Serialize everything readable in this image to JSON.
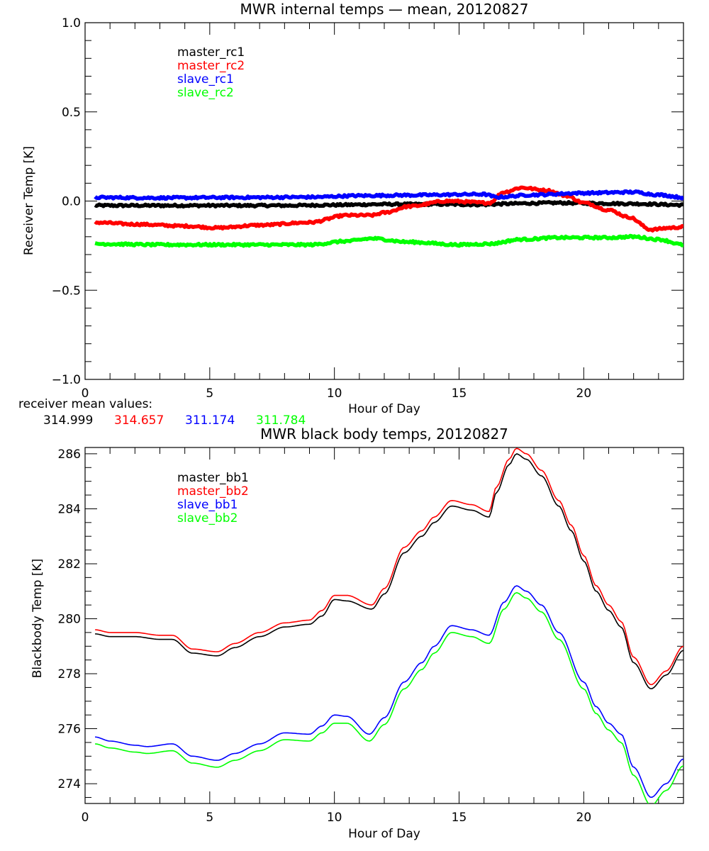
{
  "chart_data": [
    {
      "type": "line",
      "title": "MWR internal temps — mean, 20120827",
      "xlabel": "Hour of Day",
      "ylabel": "Receiver Temp [K]",
      "xlim": [
        0,
        24
      ],
      "ylim": [
        -1.0,
        1.0
      ],
      "xticks": [
        0,
        5,
        10,
        15,
        20
      ],
      "xtick_labels": [
        "0",
        "5",
        "10",
        "15",
        "20"
      ],
      "x_minor_step": 1,
      "yticks": [
        -1.0,
        -0.5,
        0.0,
        0.5,
        1.0
      ],
      "ytick_labels": [
        "−1.0",
        "−0.5",
        "0.0",
        "0.5",
        "1.0"
      ],
      "y_minor_step": 0.1,
      "grid": false,
      "legend_position": "top-left (inside)",
      "noisy": true,
      "series": [
        {
          "name": "master_rc1",
          "color": "#000000",
          "x": [
            0.4,
            2,
            4,
            6,
            8,
            10,
            12,
            14,
            16,
            17,
            18,
            19,
            20,
            22,
            24
          ],
          "y": [
            -0.025,
            -0.025,
            -0.025,
            -0.025,
            -0.025,
            -0.022,
            -0.018,
            -0.018,
            -0.02,
            -0.015,
            -0.012,
            -0.01,
            -0.012,
            -0.015,
            -0.022
          ]
        },
        {
          "name": "master_rc2",
          "color": "#ff0000",
          "x": [
            0.4,
            2,
            4,
            5.3,
            7,
            9,
            10.5,
            11.5,
            12,
            13,
            14.5,
            16.2,
            16.8,
            17.5,
            18.5,
            19.3,
            20,
            21,
            21.8,
            22.7,
            23.5,
            24
          ],
          "y": [
            -0.12,
            -0.13,
            -0.14,
            -0.15,
            -0.135,
            -0.12,
            -0.08,
            -0.08,
            -0.065,
            -0.03,
            0.0,
            -0.01,
            0.05,
            0.075,
            0.06,
            0.03,
            -0.01,
            -0.05,
            -0.09,
            -0.16,
            -0.15,
            -0.145
          ]
        },
        {
          "name": "slave_rc1",
          "color": "#0000ff",
          "x": [
            0.4,
            3,
            6,
            9,
            11,
            13,
            16,
            16.5,
            18,
            20,
            22,
            23,
            24
          ],
          "y": [
            0.02,
            0.018,
            0.02,
            0.022,
            0.03,
            0.033,
            0.038,
            0.022,
            0.035,
            0.045,
            0.05,
            0.035,
            0.02
          ]
        },
        {
          "name": "slave_rc2",
          "color": "#00ff00",
          "x": [
            0.4,
            3,
            6,
            9,
            10.5,
            11.5,
            13,
            15,
            16.2,
            17.5,
            19,
            21,
            22,
            23,
            24
          ],
          "y": [
            -0.24,
            -0.245,
            -0.245,
            -0.245,
            -0.225,
            -0.21,
            -0.23,
            -0.245,
            -0.24,
            -0.215,
            -0.205,
            -0.205,
            -0.2,
            -0.215,
            -0.245
          ]
        }
      ],
      "annotation": {
        "label": "receiver mean values:",
        "values": [
          {
            "text": "314.999",
            "color": "#000000"
          },
          {
            "text": "314.657",
            "color": "#ff0000"
          },
          {
            "text": "311.174",
            "color": "#0000ff"
          },
          {
            "text": "311.784",
            "color": "#00ff00"
          }
        ]
      }
    },
    {
      "type": "line",
      "title": "MWR black body temps, 20120827",
      "xlabel": "Hour of Day",
      "ylabel": "Blackbody Temp [K]",
      "xlim": [
        0,
        24
      ],
      "ylim": [
        273.28,
        286.23
      ],
      "xticks": [
        0,
        5,
        10,
        15,
        20
      ],
      "xtick_labels": [
        "0",
        "5",
        "10",
        "15",
        "20"
      ],
      "x_minor_step": 1,
      "yticks": [
        274,
        276,
        278,
        280,
        282,
        284,
        286
      ],
      "ytick_labels": [
        "274",
        "276",
        "278",
        "280",
        "282",
        "284",
        "286"
      ],
      "y_minor_step": 0.5,
      "grid": false,
      "legend_position": "top-left (inside)",
      "series": [
        {
          "name": "master_bb1",
          "color": "#000000",
          "x": [
            0.4,
            1,
            2,
            3,
            3.5,
            4.3,
            5.3,
            6,
            7,
            8,
            9,
            9.5,
            10,
            10.5,
            11.5,
            12,
            12.8,
            13.5,
            14,
            14.7,
            15.5,
            16.2,
            16.5,
            17,
            17.3,
            17.7,
            18.3,
            19,
            19.5,
            20,
            20.5,
            21,
            21.5,
            22,
            22.7,
            23.3,
            24
          ],
          "y": [
            279.45,
            279.35,
            279.35,
            279.25,
            279.25,
            278.75,
            278.65,
            278.95,
            279.35,
            279.7,
            279.8,
            280.1,
            280.7,
            280.65,
            280.35,
            280.9,
            282.4,
            283.0,
            283.5,
            284.1,
            283.95,
            283.7,
            284.6,
            285.6,
            286.0,
            285.8,
            285.2,
            284.1,
            283.2,
            282.1,
            281.0,
            280.3,
            279.7,
            278.4,
            277.45,
            277.95,
            278.85
          ]
        },
        {
          "name": "master_bb2",
          "color": "#ff0000",
          "x": [
            0.4,
            1,
            2,
            3,
            3.5,
            4.3,
            5.3,
            6,
            7,
            8,
            9,
            9.5,
            10,
            10.5,
            11.5,
            12,
            12.8,
            13.5,
            14,
            14.7,
            15.5,
            16.2,
            16.5,
            17,
            17.3,
            17.7,
            18.3,
            19,
            19.5,
            20,
            20.5,
            21,
            21.5,
            22,
            22.7,
            23.3,
            24
          ],
          "y": [
            279.6,
            279.5,
            279.5,
            279.4,
            279.4,
            278.9,
            278.8,
            279.1,
            279.5,
            279.85,
            279.95,
            280.3,
            280.85,
            280.85,
            280.5,
            281.1,
            282.6,
            283.2,
            283.7,
            284.3,
            284.15,
            283.9,
            284.8,
            285.8,
            286.2,
            286.0,
            285.4,
            284.3,
            283.4,
            282.3,
            281.2,
            280.5,
            279.9,
            278.6,
            277.6,
            278.1,
            279.0
          ]
        },
        {
          "name": "slave_bb1",
          "color": "#0000ff",
          "x": [
            0.4,
            1,
            2,
            2.5,
            3.5,
            4.3,
            5.3,
            6,
            7,
            8,
            9,
            9.5,
            10,
            10.5,
            11.4,
            12,
            12.8,
            13.5,
            14,
            14.7,
            15.5,
            16.2,
            16.8,
            17.3,
            17.7,
            18.3,
            19,
            20,
            20.5,
            21,
            21.5,
            22,
            22.7,
            23.3,
            24
          ],
          "y": [
            275.7,
            275.55,
            275.4,
            275.35,
            275.45,
            275.0,
            274.85,
            275.1,
            275.45,
            275.85,
            275.8,
            276.1,
            276.5,
            276.45,
            275.8,
            276.4,
            277.7,
            278.4,
            279.0,
            279.75,
            279.6,
            279.4,
            280.6,
            281.2,
            281.0,
            280.5,
            279.5,
            277.7,
            276.8,
            276.2,
            275.8,
            274.6,
            273.5,
            274.0,
            274.9
          ]
        },
        {
          "name": "slave_bb2",
          "color": "#00ff00",
          "x": [
            0.4,
            1,
            2,
            2.5,
            3.5,
            4.3,
            5.3,
            6,
            7,
            8,
            9,
            9.5,
            10,
            10.5,
            11.4,
            12,
            12.8,
            13.5,
            14,
            14.7,
            15.5,
            16.2,
            16.8,
            17.3,
            17.7,
            18.3,
            19,
            20,
            20.5,
            21,
            21.5,
            22,
            22.7,
            23.3,
            24
          ],
          "y": [
            275.45,
            275.3,
            275.15,
            275.1,
            275.2,
            274.75,
            274.6,
            274.85,
            275.2,
            275.6,
            275.55,
            275.85,
            276.2,
            276.2,
            275.55,
            276.15,
            277.45,
            278.15,
            278.75,
            279.5,
            279.35,
            279.1,
            280.35,
            280.95,
            280.75,
            280.25,
            279.25,
            277.45,
            276.55,
            275.95,
            275.5,
            274.3,
            273.2,
            273.75,
            274.65
          ]
        }
      ]
    }
  ]
}
